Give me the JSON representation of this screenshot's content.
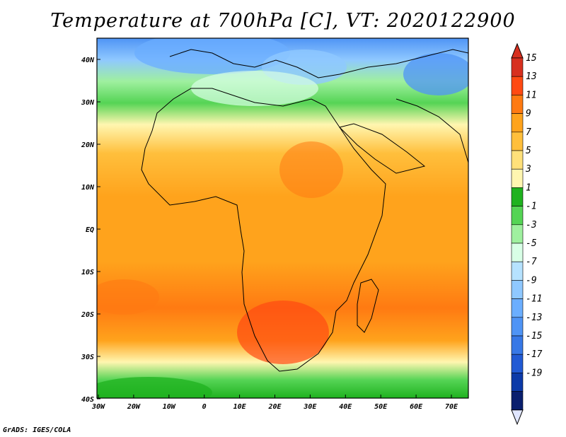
{
  "title": "Temperature at 700hPa [C], VT: 2020122900",
  "credit": "GrADS: IGES/COLA",
  "lon_ticks": [
    "30W",
    "20W",
    "10W",
    "0",
    "10E",
    "20E",
    "30E",
    "40E",
    "50E",
    "60E",
    "70E"
  ],
  "lat_ticks": [
    "40N",
    "30N",
    "20N",
    "10N",
    "EQ",
    "10S",
    "20S",
    "30S",
    "40S"
  ],
  "colorbar": {
    "labels": [
      "15",
      "13",
      "11",
      "9",
      "7",
      "5",
      "3",
      "1",
      "-1",
      "-3",
      "-5",
      "-7",
      "-9",
      "-11",
      "-13",
      "-15",
      "-17",
      "-19"
    ],
    "colors": [
      "#d7301f",
      "#ff4a13",
      "#ff7a12",
      "#ffa31c",
      "#ffbf3c",
      "#ffe07a",
      "#fff6b0",
      "#1fb21f",
      "#55d455",
      "#9ff09f",
      "#d8ffe6",
      "#b6e2ff",
      "#8fc8ff",
      "#6baeff",
      "#4f94f5",
      "#3778e6",
      "#215ad4",
      "#0c3aa8",
      "#0a1f6e"
    ],
    "arrow_top_color": "#d7301f",
    "arrow_bottom_color": "#e0e6ff"
  }
}
